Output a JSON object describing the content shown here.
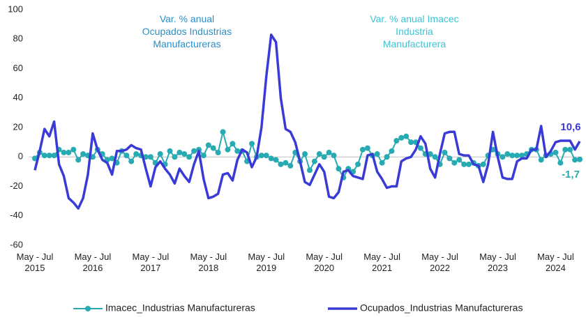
{
  "chart_data": {
    "type": "line",
    "annotations": [
      {
        "text": "Var. % anual\nOcupados Industrias\nManufactureras",
        "color": "#2b8fc4"
      },
      {
        "text": "Var. % anual Imacec\nIndustria\nManufacturera",
        "color": "#3cc3d4"
      }
    ],
    "categories": [
      "May - Jul\n2015",
      null,
      null,
      null,
      null,
      null,
      null,
      null,
      null,
      null,
      null,
      null,
      "May - Jul\n2016",
      null,
      null,
      null,
      null,
      null,
      null,
      null,
      null,
      null,
      null,
      null,
      "May - Jul\n2017",
      null,
      null,
      null,
      null,
      null,
      null,
      null,
      null,
      null,
      null,
      null,
      "May - Jul\n2018",
      null,
      null,
      null,
      null,
      null,
      null,
      null,
      null,
      null,
      null,
      null,
      "May - Jul\n2019",
      null,
      null,
      null,
      null,
      null,
      null,
      null,
      null,
      null,
      null,
      null,
      "May - Jul\n2020",
      null,
      null,
      null,
      null,
      null,
      null,
      null,
      null,
      null,
      null,
      null,
      "May - Jul\n2021",
      null,
      null,
      null,
      null,
      null,
      null,
      null,
      null,
      null,
      null,
      null,
      "May - Jul\n2022",
      null,
      null,
      null,
      null,
      null,
      null,
      null,
      null,
      null,
      null,
      null,
      "May - Jul\n2023",
      null,
      null,
      null,
      null,
      null,
      null,
      null,
      null,
      null,
      null,
      null,
      "May - Jul\n2024",
      null,
      null,
      null,
      null,
      null
    ],
    "series": [
      {
        "name": "Imacec_Industrias Manufactureras",
        "color": "#27aab2",
        "markers": true,
        "values": [
          -1,
          3,
          1,
          1,
          1,
          5,
          3,
          3,
          5,
          -2,
          2,
          1,
          0,
          5,
          2,
          -2,
          -1,
          -4,
          4,
          1,
          -3,
          2,
          1,
          0,
          0,
          -4,
          2,
          -5,
          4,
          0,
          3,
          2,
          0,
          4,
          5,
          1,
          8,
          6,
          3,
          17,
          5,
          9,
          4,
          4,
          -3,
          9,
          0,
          1,
          1,
          -1,
          -2,
          -5,
          -4,
          -6,
          3,
          -3,
          2,
          -9,
          -3,
          2,
          0,
          3,
          1,
          -8,
          -14,
          -8,
          -10,
          -5,
          5,
          6,
          1,
          2,
          -4,
          0,
          4,
          11,
          13,
          14,
          10,
          10,
          6,
          2,
          2,
          0,
          -5,
          3,
          -1,
          -4,
          -2,
          -5,
          -5,
          -4,
          -6,
          -5,
          1,
          5,
          2,
          0,
          2,
          1,
          1,
          1,
          2,
          5,
          5,
          -2,
          1,
          2,
          3,
          -4,
          5,
          5,
          -2,
          -1.7
        ],
        "value_labels": {
          "113": "-1,7"
        }
      },
      {
        "name": "Ocupados_Industrias Manufactureras",
        "color": "#3a3ad6",
        "markers": false,
        "values": [
          -9,
          4,
          19,
          14,
          24,
          -5,
          -13,
          -28,
          -31,
          -35,
          -28,
          -12,
          16,
          5,
          -2,
          -4,
          -12,
          4,
          4,
          5,
          8,
          6,
          5,
          -8,
          -20,
          -7,
          -3,
          -8,
          -12,
          -18,
          -8,
          -13,
          -17,
          -5,
          4,
          -15,
          -28,
          -27,
          -25,
          -12,
          -11,
          -16,
          -2,
          5,
          3,
          -7,
          0,
          20,
          55,
          83,
          78,
          40,
          19,
          17,
          10,
          -3,
          -17,
          -19,
          -12,
          -5,
          -10,
          -27,
          -28,
          -24,
          -10,
          -9,
          -13,
          -14,
          -15,
          1,
          2,
          -10,
          -15,
          -21,
          -20,
          -20,
          -3,
          -1,
          0,
          5,
          14,
          9,
          -8,
          -14,
          2,
          16,
          17,
          17,
          2,
          1,
          1,
          -5,
          -6,
          -17,
          -5,
          17,
          0,
          -14,
          -15,
          -15,
          -3,
          -1,
          -1,
          5,
          5,
          21,
          0,
          4,
          10,
          11,
          11,
          11,
          5,
          10.6
        ],
        "value_labels": {
          "113": "10,6"
        }
      }
    ],
    "ylim": [
      -60,
      100
    ],
    "yticks": [
      -60,
      -40,
      -20,
      0,
      20,
      40,
      60,
      80,
      100
    ],
    "grid": false,
    "legend": "bottom"
  }
}
